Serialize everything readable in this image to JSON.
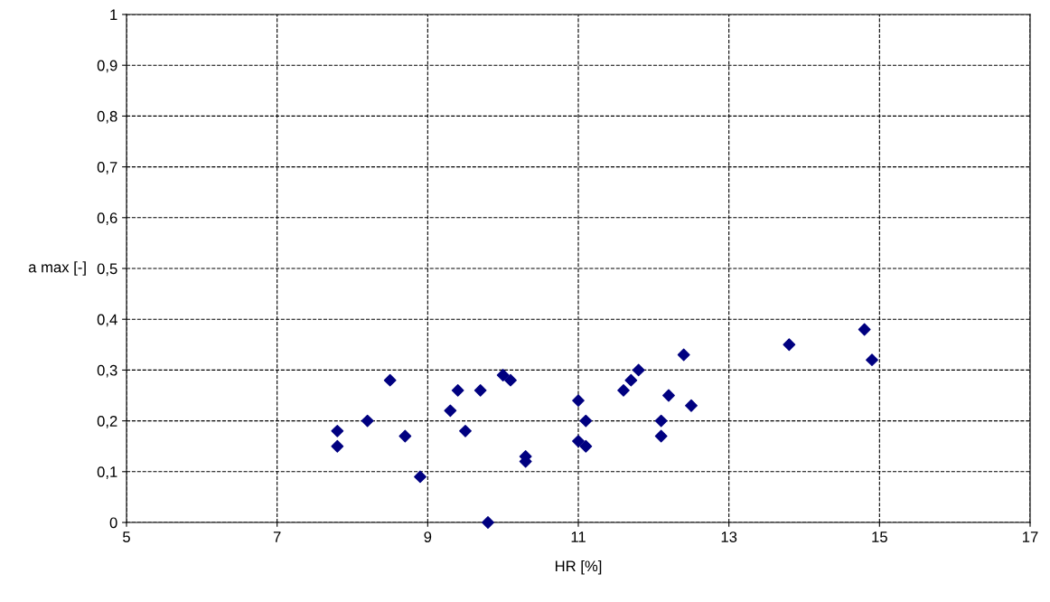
{
  "chart_data": {
    "type": "scatter",
    "xlabel": "HR [%]",
    "ylabel": "a max [-]",
    "x": [
      7.8,
      7.8,
      8.2,
      8.5,
      8.7,
      8.9,
      9.3,
      9.4,
      9.5,
      9.7,
      9.8,
      10.0,
      10.1,
      10.3,
      10.3,
      11.0,
      11.0,
      11.1,
      11.1,
      11.6,
      11.7,
      11.8,
      12.1,
      12.1,
      12.2,
      12.4,
      12.5,
      13.8,
      14.8,
      14.9
    ],
    "values": [
      0.18,
      0.15,
      0.2,
      0.28,
      0.17,
      0.09,
      0.22,
      0.26,
      0.18,
      0.26,
      0.0,
      0.29,
      0.28,
      0.13,
      0.12,
      0.24,
      0.16,
      0.15,
      0.2,
      0.26,
      0.28,
      0.3,
      0.2,
      0.17,
      0.25,
      0.33,
      0.23,
      0.35,
      0.38,
      0.32
    ],
    "color": "#000080",
    "marker": "diamond",
    "grid": true,
    "line_style": "dashed",
    "xlim": [
      5,
      17
    ],
    "xticks": [
      5,
      7,
      9,
      11,
      13,
      15,
      17
    ],
    "ylim": [
      0,
      1
    ],
    "yticks": [
      0,
      {
        "value": 0.1,
        "label": "0,1"
      },
      {
        "value": 0.2,
        "label": "0,2"
      },
      {
        "value": 0.3,
        "label": "0,3"
      },
      {
        "value": 0.4,
        "label": "0,4"
      },
      {
        "value": 0.5,
        "label": "0,5"
      },
      {
        "value": 0.6,
        "label": "0,6"
      },
      {
        "value": 0.7,
        "label": "0,7"
      },
      {
        "value": 0.8,
        "label": "0,8"
      },
      {
        "value": 0.9,
        "label": "0,9"
      },
      1
    ]
  }
}
